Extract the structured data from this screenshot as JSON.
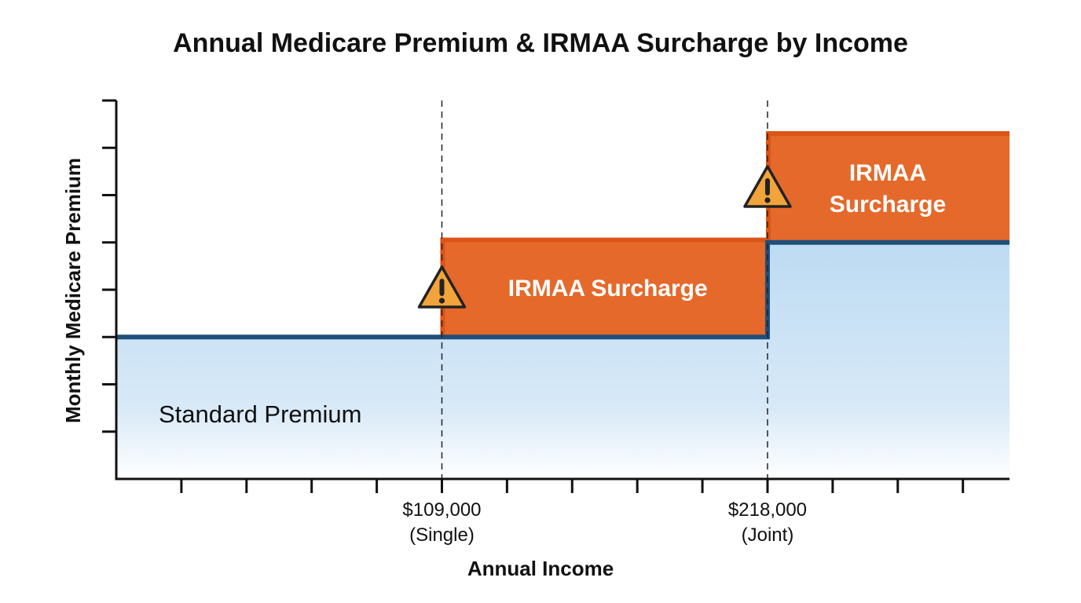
{
  "chart_data": {
    "type": "area",
    "title": "Annual Medicare Premium & IRMAA Surcharge by Income",
    "xlabel": "Annual Income",
    "ylabel": "Monthly Medicare Premium",
    "xlim": [
      0,
      299000
    ],
    "ylim": [
      0,
      8
    ],
    "x_tick_step": 21800,
    "y_tick_step": 1,
    "grid": false,
    "thresholds": [
      {
        "x": 109000,
        "label": "$109,000",
        "sublabel": "(Single)"
      },
      {
        "x": 218000,
        "label": "$218,000",
        "sublabel": "(Joint)"
      }
    ],
    "base_premium": {
      "label": "Standard Premium",
      "steps": [
        {
          "x_start": 0,
          "x_end": 218000,
          "y": 3
        },
        {
          "x_start": 218000,
          "x_end": 299000,
          "y": 5
        }
      ]
    },
    "surcharges": [
      {
        "label": "IRMAA Surcharge",
        "x_start": 109000,
        "x_end": 218000,
        "y_bottom": 3,
        "y_top": 5.1,
        "icon": "warning-icon"
      },
      {
        "label": "IRMAA Surcharge",
        "label_lines": [
          "IRMAA",
          "Surcharge"
        ],
        "x_start": 218000,
        "x_end": 299000,
        "y_bottom": 5,
        "y_top": 7.35,
        "icon": "warning-icon"
      }
    ],
    "colors": {
      "surcharge": "#E5692A",
      "surcharge_edge": "#DC5416",
      "line": "#1F4E7A",
      "fill_top": "#BDDBF3",
      "fill_bottom": "#FFFFFF",
      "warning": "#F2A33A"
    }
  }
}
